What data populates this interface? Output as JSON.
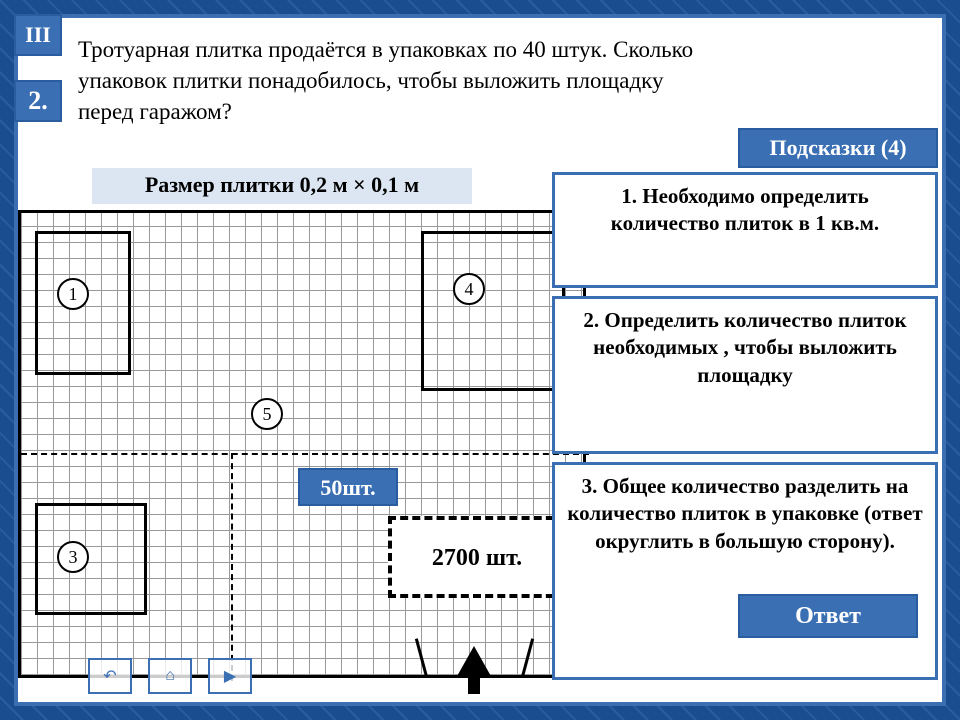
{
  "badges": {
    "section": "III",
    "number": "2."
  },
  "problem_text": "Тротуарная плитка продаётся в упаковках по 40 штук. Сколько упаковок плитки понадобилось, чтобы выложить площадку  перед гаражом?",
  "tile_size_label": "Размер плитки 0,2 м × 0,1 м",
  "hints_button": "Подсказки (4)",
  "hints": {
    "h1": "1. Необходимо определить количество плиток в 1 кв.м.",
    "h2": "2. Определить количество плиток необходимых , чтобы выложить площадку",
    "h3": "3. Общее количество разделить на количество плиток в упаковке (ответ округлить в большую сторону)."
  },
  "answer_button": "Ответ",
  "plot_labels": {
    "p1": "1",
    "p3": "3",
    "p4": "4",
    "p5": "5"
  },
  "tags": {
    "fifty": "50шт.",
    "total": "2700 шт."
  },
  "colors": {
    "primary": "#3a6fb3",
    "primary_dark": "#2a5d9f",
    "panel_bg": "#dce6f2",
    "background": "#1a4d8f"
  },
  "nav": {
    "back": "↶",
    "home": "⌂",
    "next": "▶"
  }
}
